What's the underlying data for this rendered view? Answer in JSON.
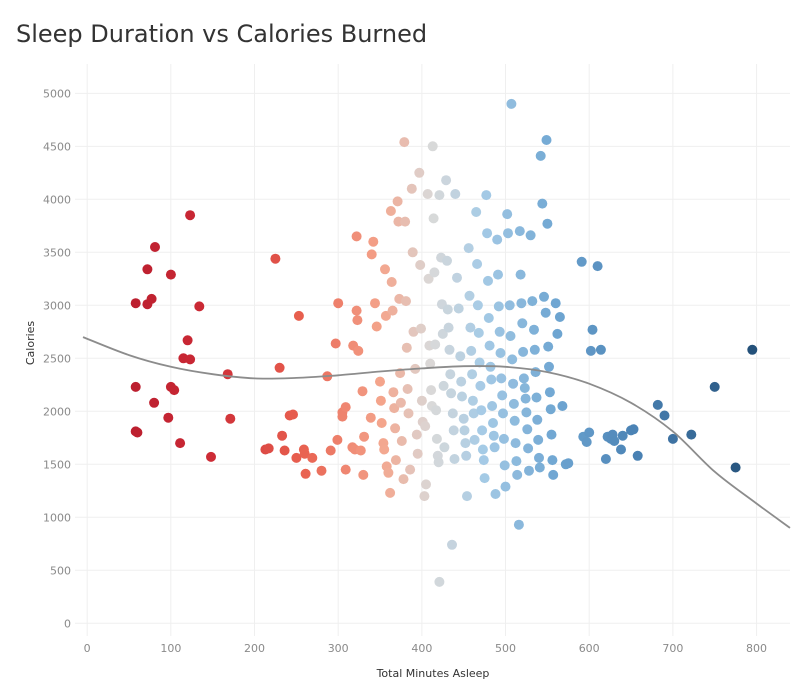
{
  "chart_data": {
    "type": "scatter",
    "title": "Sleep Duration vs Calories Burned",
    "xlabel": "Total Minutes Asleep",
    "ylabel": "Calories",
    "xlim": [
      -5,
      840
    ],
    "ylim": [
      -120,
      5220
    ],
    "x_ticks": [
      0,
      100,
      200,
      300,
      400,
      500,
      600,
      700,
      800
    ],
    "y_ticks": [
      0,
      500,
      1000,
      1500,
      2000,
      2500,
      3000,
      3500,
      4000,
      4500,
      5000
    ],
    "grid": true,
    "color_scale": {
      "type": "diverging",
      "field": "Total Minutes Asleep",
      "low": "#b2182b",
      "mid": "#d9d9d9",
      "high": "#234f78"
    },
    "trend_line": {
      "type": "polynomial",
      "color": "#8c8c8c",
      "points": [
        [
          -5,
          2700
        ],
        [
          50,
          2530
        ],
        [
          100,
          2420
        ],
        [
          150,
          2350
        ],
        [
          200,
          2310
        ],
        [
          250,
          2315
        ],
        [
          300,
          2340
        ],
        [
          350,
          2375
        ],
        [
          400,
          2405
        ],
        [
          450,
          2425
        ],
        [
          500,
          2420
        ],
        [
          550,
          2370
        ],
        [
          600,
          2260
        ],
        [
          650,
          2080
        ],
        [
          700,
          1810
        ],
        [
          750,
          1430
        ],
        [
          800,
          1130
        ],
        [
          840,
          900
        ]
      ]
    },
    "points": [
      [
        58,
        3020
      ],
      [
        72,
        3010
      ],
      [
        77,
        3060
      ],
      [
        81,
        3550
      ],
      [
        72,
        3340
      ],
      [
        100,
        3290
      ],
      [
        123,
        3850
      ],
      [
        134,
        2990
      ],
      [
        120,
        2670
      ],
      [
        115,
        2500
      ],
      [
        123,
        2490
      ],
      [
        58,
        2230
      ],
      [
        100,
        2230
      ],
      [
        104,
        2200
      ],
      [
        80,
        2080
      ],
      [
        97,
        1940
      ],
      [
        58,
        1810
      ],
      [
        60,
        1800
      ],
      [
        111,
        1700
      ],
      [
        168,
        2350
      ],
      [
        171,
        1930
      ],
      [
        148,
        1570
      ],
      [
        225,
        3440
      ],
      [
        253,
        2900
      ],
      [
        230,
        2410
      ],
      [
        213,
        1640
      ],
      [
        217,
        1650
      ],
      [
        233,
        1770
      ],
      [
        236,
        1630
      ],
      [
        242,
        1960
      ],
      [
        246,
        1970
      ],
      [
        250,
        1560
      ],
      [
        259,
        1640
      ],
      [
        260,
        1600
      ],
      [
        261,
        1410
      ],
      [
        269,
        1560
      ],
      [
        280,
        1440
      ],
      [
        287,
        2330
      ],
      [
        291,
        1630
      ],
      [
        299,
        1730
      ],
      [
        309,
        1450
      ],
      [
        300,
        3020
      ],
      [
        297,
        2640
      ],
      [
        305,
        1990
      ],
      [
        305,
        1950
      ],
      [
        309,
        2040
      ],
      [
        317,
        1660
      ],
      [
        320,
        1640
      ],
      [
        318,
        2620
      ],
      [
        322,
        2950
      ],
      [
        324,
        2570
      ],
      [
        322,
        3650
      ],
      [
        323,
        2860
      ],
      [
        329,
        2190
      ],
      [
        327,
        1630
      ],
      [
        331,
        1760
      ],
      [
        330,
        1400
      ],
      [
        339,
        1940
      ],
      [
        340,
        3480
      ],
      [
        342,
        3600
      ],
      [
        344,
        3020
      ],
      [
        346,
        2800
      ],
      [
        350,
        2280
      ],
      [
        351,
        2100
      ],
      [
        352,
        1890
      ],
      [
        354,
        1700
      ],
      [
        355,
        1640
      ],
      [
        356,
        3340
      ],
      [
        357,
        2900
      ],
      [
        358,
        1480
      ],
      [
        360,
        1420
      ],
      [
        362,
        1230
      ],
      [
        363,
        3890
      ],
      [
        364,
        3220
      ],
      [
        365,
        2950
      ],
      [
        366,
        2180
      ],
      [
        367,
        2030
      ],
      [
        368,
        1840
      ],
      [
        369,
        1540
      ],
      [
        371,
        3980
      ],
      [
        372,
        3790
      ],
      [
        373,
        3060
      ],
      [
        374,
        2360
      ],
      [
        375,
        2080
      ],
      [
        376,
        1720
      ],
      [
        378,
        1360
      ],
      [
        379,
        4540
      ],
      [
        380,
        3790
      ],
      [
        381,
        3040
      ],
      [
        382,
        2600
      ],
      [
        383,
        2210
      ],
      [
        384,
        1980
      ],
      [
        386,
        1450
      ],
      [
        388,
        4100
      ],
      [
        389,
        3500
      ],
      [
        390,
        2750
      ],
      [
        392,
        2400
      ],
      [
        394,
        1780
      ],
      [
        395,
        1600
      ],
      [
        397,
        4250
      ],
      [
        398,
        3380
      ],
      [
        399,
        2780
      ],
      [
        400,
        2100
      ],
      [
        401,
        1900
      ],
      [
        404,
        1860
      ],
      [
        403,
        1200
      ],
      [
        405,
        1310
      ],
      [
        407,
        4050
      ],
      [
        408,
        3250
      ],
      [
        409,
        2620
      ],
      [
        410,
        2450
      ],
      [
        411,
        2200
      ],
      [
        412,
        2050
      ],
      [
        413,
        4500
      ],
      [
        414,
        3820
      ],
      [
        415,
        3310
      ],
      [
        416,
        2630
      ],
      [
        417,
        2010
      ],
      [
        418,
        1740
      ],
      [
        419,
        1580
      ],
      [
        420,
        1520
      ],
      [
        421,
        4040
      ],
      [
        421,
        390
      ],
      [
        423,
        3450
      ],
      [
        424,
        3010
      ],
      [
        425,
        2730
      ],
      [
        426,
        2240
      ],
      [
        427,
        1660
      ],
      [
        429,
        4180
      ],
      [
        430,
        3420
      ],
      [
        431,
        2960
      ],
      [
        432,
        2790
      ],
      [
        433,
        2580
      ],
      [
        434,
        2350
      ],
      [
        435,
        2170
      ],
      [
        437,
        1980
      ],
      [
        438,
        1820
      ],
      [
        439,
        1550
      ],
      [
        436,
        740
      ],
      [
        440,
        4050
      ],
      [
        442,
        3260
      ],
      [
        444,
        2970
      ],
      [
        446,
        2520
      ],
      [
        447,
        2280
      ],
      [
        448,
        2140
      ],
      [
        450,
        1930
      ],
      [
        451,
        1820
      ],
      [
        452,
        1700
      ],
      [
        453,
        1580
      ],
      [
        454,
        1200
      ],
      [
        456,
        3540
      ],
      [
        457,
        3090
      ],
      [
        458,
        2790
      ],
      [
        459,
        2570
      ],
      [
        460,
        2350
      ],
      [
        461,
        2100
      ],
      [
        462,
        1980
      ],
      [
        463,
        1730
      ],
      [
        465,
        3880
      ],
      [
        466,
        3390
      ],
      [
        467,
        3000
      ],
      [
        468,
        2740
      ],
      [
        469,
        2460
      ],
      [
        470,
        2240
      ],
      [
        471,
        2010
      ],
      [
        472,
        1820
      ],
      [
        473,
        1640
      ],
      [
        474,
        1540
      ],
      [
        475,
        1370
      ],
      [
        477,
        4040
      ],
      [
        478,
        3680
      ],
      [
        479,
        3230
      ],
      [
        480,
        2880
      ],
      [
        481,
        2620
      ],
      [
        482,
        2420
      ],
      [
        483,
        2300
      ],
      [
        484,
        2050
      ],
      [
        485,
        1890
      ],
      [
        486,
        1770
      ],
      [
        487,
        1660
      ],
      [
        488,
        1220
      ],
      [
        490,
        3620
      ],
      [
        491,
        3290
      ],
      [
        492,
        2990
      ],
      [
        493,
        2750
      ],
      [
        494,
        2550
      ],
      [
        495,
        2310
      ],
      [
        496,
        2150
      ],
      [
        497,
        1980
      ],
      [
        498,
        1740
      ],
      [
        499,
        1490
      ],
      [
        500,
        1290
      ],
      [
        502,
        3860
      ],
      [
        503,
        3680
      ],
      [
        505,
        3000
      ],
      [
        506,
        2710
      ],
      [
        507,
        4900
      ],
      [
        508,
        2490
      ],
      [
        509,
        2260
      ],
      [
        510,
        2070
      ],
      [
        511,
        1910
      ],
      [
        512,
        1700
      ],
      [
        513,
        1530
      ],
      [
        514,
        1400
      ],
      [
        516,
        930
      ],
      [
        517,
        3700
      ],
      [
        518,
        3290
      ],
      [
        519,
        3020
      ],
      [
        520,
        2830
      ],
      [
        521,
        2560
      ],
      [
        522,
        2310
      ],
      [
        523,
        2220
      ],
      [
        524,
        2120
      ],
      [
        525,
        1990
      ],
      [
        526,
        1830
      ],
      [
        527,
        1650
      ],
      [
        528,
        1440
      ],
      [
        530,
        3660
      ],
      [
        532,
        3040
      ],
      [
        534,
        2770
      ],
      [
        535,
        2580
      ],
      [
        536,
        2370
      ],
      [
        537,
        2130
      ],
      [
        538,
        1920
      ],
      [
        539,
        1730
      ],
      [
        540,
        1560
      ],
      [
        541,
        1470
      ],
      [
        542,
        4410
      ],
      [
        544,
        3960
      ],
      [
        546,
        3080
      ],
      [
        548,
        2930
      ],
      [
        549,
        4560
      ],
      [
        550,
        3770
      ],
      [
        551,
        2610
      ],
      [
        552,
        2420
      ],
      [
        553,
        2180
      ],
      [
        554,
        2020
      ],
      [
        555,
        1780
      ],
      [
        556,
        1540
      ],
      [
        557,
        1400
      ],
      [
        560,
        3020
      ],
      [
        562,
        2730
      ],
      [
        565,
        2890
      ],
      [
        568,
        2050
      ],
      [
        572,
        1500
      ],
      [
        575,
        1510
      ],
      [
        591,
        3410
      ],
      [
        593,
        1760
      ],
      [
        597,
        1710
      ],
      [
        600,
        1800
      ],
      [
        602,
        2570
      ],
      [
        604,
        2770
      ],
      [
        610,
        3370
      ],
      [
        614,
        2580
      ],
      [
        620,
        1550
      ],
      [
        622,
        1760
      ],
      [
        626,
        1740
      ],
      [
        628,
        1780
      ],
      [
        630,
        1720
      ],
      [
        638,
        1640
      ],
      [
        640,
        1770
      ],
      [
        650,
        1820
      ],
      [
        653,
        1830
      ],
      [
        658,
        1580
      ],
      [
        682,
        2060
      ],
      [
        690,
        1960
      ],
      [
        700,
        1740
      ],
      [
        722,
        1780
      ],
      [
        750,
        2230
      ],
      [
        775,
        1470
      ],
      [
        795,
        2580
      ]
    ]
  }
}
